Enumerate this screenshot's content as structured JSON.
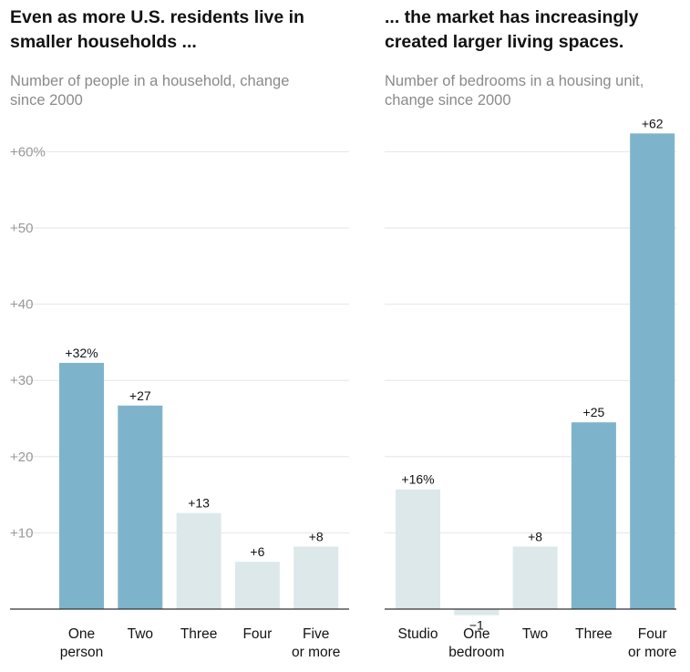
{
  "chart_data": [
    {
      "type": "bar",
      "title": "Even as more U.S. residents live in smaller households ...",
      "subtitle": "Number of people in a household, change since 2000",
      "categories": [
        "One person",
        "Two",
        "Three",
        "Four",
        "Five or more"
      ],
      "category_lines": [
        [
          "One",
          "person"
        ],
        [
          "Two"
        ],
        [
          "Three"
        ],
        [
          "Four"
        ],
        [
          "Five",
          "or more"
        ]
      ],
      "values": [
        32.3,
        26.7,
        12.6,
        6.2,
        8.2
      ],
      "value_labels": [
        "+32%",
        "+27",
        "+13",
        "+6",
        "+8"
      ],
      "highlighted": [
        true,
        true,
        false,
        false,
        false
      ],
      "ylim": [
        0,
        60
      ],
      "yticks": [
        10,
        20,
        30,
        40,
        50,
        60
      ],
      "ytick_labels": [
        "+10",
        "+20",
        "+30",
        "+40",
        "+50",
        "+60%"
      ],
      "grid": true
    },
    {
      "type": "bar",
      "title": "... the market has increasingly created larger living spaces.",
      "subtitle": "Number of bedrooms in a housing unit, change since 2000",
      "categories": [
        "Studio",
        "One bedroom",
        "Two",
        "Three",
        "Four or more"
      ],
      "category_lines": [
        [
          "Studio"
        ],
        [
          "One",
          "bedroom"
        ],
        [
          "Two"
        ],
        [
          "Three"
        ],
        [
          "Four",
          "or more"
        ]
      ],
      "values": [
        15.7,
        -0.8,
        8.2,
        24.5,
        62.4
      ],
      "value_labels": [
        "+16%",
        "−1",
        "+8",
        "+25",
        "+62"
      ],
      "highlighted": [
        false,
        false,
        false,
        true,
        true
      ],
      "ylim": [
        0,
        60
      ],
      "yticks": [
        10,
        20,
        30,
        40,
        50,
        60
      ],
      "ytick_labels": [
        "",
        "",
        "",
        "",
        "",
        ""
      ],
      "grid": true
    }
  ],
  "colors": {
    "highlight": "#7eb4cb",
    "muted": "#dce8ea",
    "grid": "#e6e6e6",
    "axis": "#333333"
  }
}
